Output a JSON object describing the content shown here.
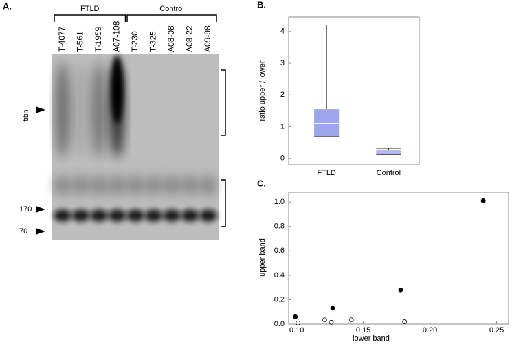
{
  "panels": {
    "a": "A.",
    "b": "B.",
    "c": "C."
  },
  "blot": {
    "groups": [
      {
        "label": "FTLD",
        "lanes": [
          "T-4077",
          "T-561",
          "T-1959",
          "A07-108"
        ]
      },
      {
        "label": "Control",
        "lanes": [
          "T-230",
          "T-325",
          "A08-08",
          "A08-22",
          "A09-98"
        ]
      }
    ],
    "markers": {
      "titin": "titin",
      "m170": "170",
      "m70": "70"
    }
  },
  "chart_data": [
    {
      "type": "box",
      "ylabel": "ratio upper / lower",
      "categories": [
        "FTLD",
        "Control"
      ],
      "min": [
        0.7,
        0.12
      ],
      "q1": [
        0.7,
        0.15
      ],
      "median": [
        1.1,
        0.2
      ],
      "q3": [
        1.55,
        0.25
      ],
      "max": [
        4.2,
        0.32
      ],
      "color": "#9ea6ea",
      "median_color": "#ffffff",
      "ylim": [
        -0.2,
        4.45
      ],
      "yticks": [
        0,
        1,
        2,
        3,
        4
      ]
    },
    {
      "type": "scatter",
      "xlabel": "lower band",
      "ylabel": "upper band",
      "xlim": [
        0.094,
        0.259
      ],
      "ylim": [
        0,
        1.08
      ],
      "xticks": [
        {
          "value": 0.1,
          "label": "0.10"
        },
        {
          "value": 0.15,
          "label": "0.15"
        },
        {
          "value": 0.2,
          "label": "0.20"
        },
        {
          "value": 0.25,
          "label": "0.25"
        }
      ],
      "yticks": [
        {
          "value": 0,
          "label": "0.0"
        },
        {
          "value": 0.2,
          "label": "0.2"
        },
        {
          "value": 0.4,
          "label": "0.4"
        },
        {
          "value": 0.6,
          "label": "0.6"
        },
        {
          "value": 0.8,
          "label": "0.8"
        },
        {
          "value": 1,
          "label": "1.0"
        }
      ],
      "series": [
        {
          "color": "#000000",
          "filled": true,
          "x": [
            0.099,
            0.127,
            0.178,
            0.24
          ],
          "values": [
            0.06,
            0.13,
            0.28,
            1.01
          ]
        },
        {
          "color": "#000000",
          "filled": false,
          "x": [
            0.101,
            0.121,
            0.126,
            0.141,
            0.181
          ],
          "values": [
            0.01,
            0.035,
            0.015,
            0.035,
            0.02
          ]
        }
      ]
    }
  ]
}
